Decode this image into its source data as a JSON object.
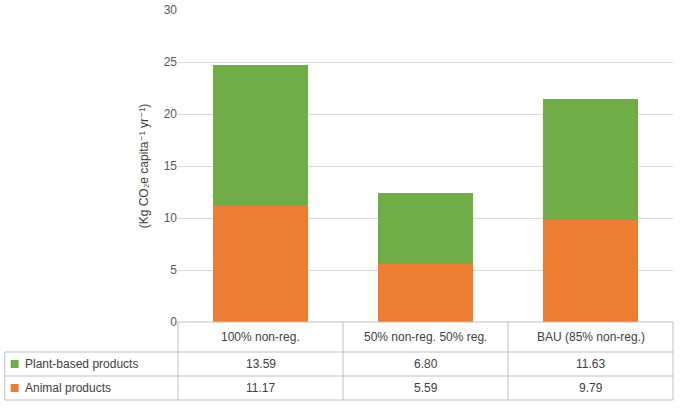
{
  "chart_data": {
    "type": "bar",
    "stacked": true,
    "y_label": "(Kg CO₂e capita⁻¹ yr⁻¹)",
    "categories": [
      "100% non-reg.",
      "50% non-reg. 50% reg.",
      "BAU (85% non-reg.)"
    ],
    "series": [
      {
        "name": "Animal products",
        "color": "#ed7d31",
        "values": [
          11.17,
          5.59,
          9.79
        ],
        "value_labels": [
          "11.17",
          "5.59",
          "9.79"
        ]
      },
      {
        "name": "Plant-based products",
        "color": "#70ad47",
        "values": [
          13.59,
          6.8,
          11.63
        ],
        "value_labels": [
          "13.59",
          "6.80",
          "11.63"
        ]
      }
    ],
    "ylim": [
      0,
      30
    ],
    "yticks": [
      0,
      5,
      10,
      15,
      20,
      25,
      30
    ],
    "grid": true
  }
}
